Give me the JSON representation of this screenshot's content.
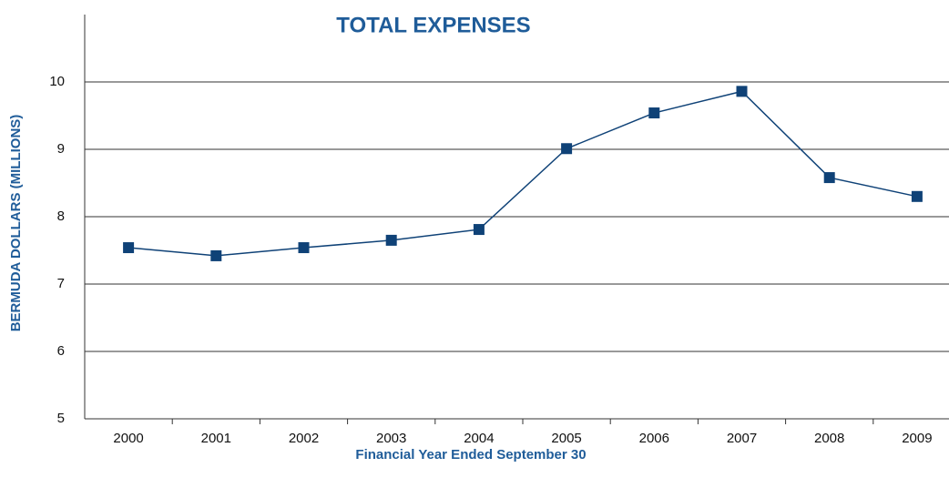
{
  "chart_data": {
    "type": "line",
    "title": "TOTAL EXPENSES",
    "x_label": "Financial Year Ended September 30",
    "y_label": "BERMUDA DOLLARS (MILLIONS)",
    "categories": [
      "2000",
      "2001",
      "2002",
      "2003",
      "2004",
      "2005",
      "2006",
      "2007",
      "2008",
      "2009"
    ],
    "series": [
      {
        "name": "Total Expenses",
        "color": "#0f4277",
        "values": [
          7.54,
          7.42,
          7.54,
          7.65,
          7.81,
          9.01,
          9.54,
          9.86,
          8.58,
          8.3
        ]
      }
    ],
    "ylim": [
      5,
      11
    ],
    "yticks": [
      5,
      6,
      7,
      8,
      9,
      10
    ],
    "grid": true
  }
}
